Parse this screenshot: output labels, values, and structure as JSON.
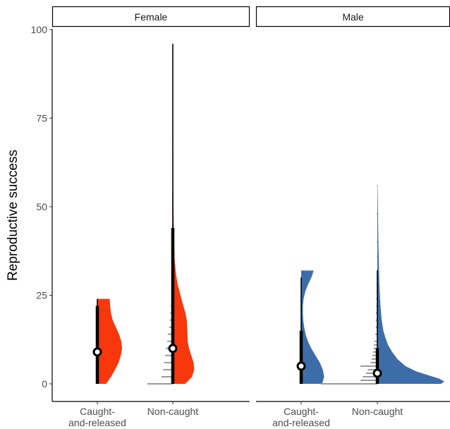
{
  "chart_data": {
    "type": "raincloud",
    "ylabel": "Reproductive success",
    "xlabel": "",
    "ylim": [
      0,
      100
    ],
    "yticks": [
      0,
      25,
      50,
      75,
      100
    ],
    "categories": [
      "Caught-\nand-released",
      "Non-caught"
    ],
    "grid": false,
    "legend": "none",
    "panels": [
      {
        "name": "Female",
        "color": "#F8370C",
        "groups": [
          {
            "category": "Caught-\nand-released",
            "median": 9,
            "interval_66": [
              0,
              22
            ],
            "interval_95": [
              0,
              24
            ],
            "range": [
              0,
              24
            ],
            "density": [
              [
                0,
                0.35
              ],
              [
                2,
                0.55
              ],
              [
                4,
                0.72
              ],
              [
                6,
                0.86
              ],
              [
                8,
                0.95
              ],
              [
                10,
                1.0
              ],
              [
                12,
                0.97
              ],
              [
                14,
                0.88
              ],
              [
                16,
                0.75
              ],
              [
                18,
                0.62
              ],
              [
                20,
                0.55
              ],
              [
                22,
                0.52
              ],
              [
                24,
                0.5
              ]
            ],
            "histogram": []
          },
          {
            "category": "Non-caught",
            "median": 10,
            "interval_66": [
              0,
              44
            ],
            "interval_95": [
              0,
              96
            ],
            "range": [
              0,
              96
            ],
            "density": [
              [
                0,
                0.55
              ],
              [
                2,
                0.85
              ],
              [
                4,
                0.95
              ],
              [
                6,
                0.92
              ],
              [
                8,
                0.82
              ],
              [
                10,
                0.72
              ],
              [
                12,
                0.66
              ],
              [
                15,
                0.64
              ],
              [
                18,
                0.62
              ],
              [
                20,
                0.56
              ],
              [
                22,
                0.47
              ],
              [
                25,
                0.34
              ],
              [
                28,
                0.22
              ],
              [
                31,
                0.14
              ],
              [
                35,
                0.08
              ],
              [
                40,
                0.05
              ],
              [
                45,
                0.04
              ],
              [
                50,
                0.03
              ],
              [
                60,
                0.02
              ],
              [
                70,
                0.015
              ],
              [
                80,
                0.01
              ],
              [
                90,
                0.008
              ],
              [
                96,
                0.005
              ]
            ],
            "histogram": [
              [
                0,
                1.0
              ],
              [
                2,
                0.45
              ],
              [
                4,
                0.38
              ],
              [
                6,
                0.34
              ],
              [
                8,
                0.3
              ],
              [
                10,
                0.28
              ],
              [
                12,
                0.22
              ],
              [
                14,
                0.2
              ],
              [
                16,
                0.15
              ],
              [
                18,
                0.12
              ],
              [
                20,
                0.1
              ],
              [
                22,
                0.08
              ],
              [
                24,
                0.06
              ],
              [
                26,
                0.05
              ],
              [
                28,
                0.04
              ],
              [
                30,
                0.03
              ],
              [
                32,
                0.03
              ],
              [
                34,
                0.02
              ],
              [
                36,
                0.02
              ],
              [
                38,
                0.015
              ],
              [
                40,
                0.015
              ],
              [
                44,
                0.01
              ],
              [
                55,
                0.01
              ],
              [
                75,
                0.01
              ],
              [
                96,
                0.01
              ]
            ]
          }
        ]
      },
      {
        "name": "Male",
        "color": "#3D6DA9",
        "groups": [
          {
            "category": "Caught-\nand-released",
            "median": 5,
            "interval_66": [
              0,
              15
            ],
            "interval_95": [
              0,
              30
            ],
            "range": [
              0,
              32
            ],
            "density": [
              [
                0,
                0.62
              ],
              [
                2,
                0.68
              ],
              [
                4,
                0.64
              ],
              [
                6,
                0.55
              ],
              [
                8,
                0.42
              ],
              [
                10,
                0.3
              ],
              [
                12,
                0.2
              ],
              [
                14,
                0.13
              ],
              [
                16,
                0.09
              ],
              [
                18,
                0.06
              ],
              [
                20,
                0.05
              ],
              [
                22,
                0.05
              ],
              [
                24,
                0.07
              ],
              [
                26,
                0.12
              ],
              [
                28,
                0.2
              ],
              [
                30,
                0.3
              ],
              [
                32,
                0.37
              ]
            ],
            "histogram": []
          },
          {
            "category": "Non-caught",
            "median": 3,
            "interval_66": [
              0,
              10
            ],
            "interval_95": [
              0,
              32
            ],
            "range": [
              0,
              56
            ],
            "density": [
              [
                0,
                0.95
              ],
              [
                0.7,
                1.0
              ],
              [
                1.5,
                0.92
              ],
              [
                2.5,
                0.75
              ],
              [
                3.5,
                0.58
              ],
              [
                5,
                0.42
              ],
              [
                7,
                0.3
              ],
              [
                9,
                0.22
              ],
              [
                11,
                0.16
              ],
              [
                13,
                0.12
              ],
              [
                15,
                0.09
              ],
              [
                18,
                0.065
              ],
              [
                21,
                0.05
              ],
              [
                24,
                0.04
              ],
              [
                28,
                0.03
              ],
              [
                32,
                0.025
              ],
              [
                36,
                0.02
              ],
              [
                40,
                0.015
              ],
              [
                45,
                0.012
              ],
              [
                50,
                0.008
              ],
              [
                56,
                0.004
              ]
            ],
            "histogram": [
              [
                0,
                1.0
              ],
              [
                1,
                0.3
              ],
              [
                2,
                0.26
              ],
              [
                3,
                0.2
              ],
              [
                4,
                0.17
              ],
              [
                5,
                0.3
              ],
              [
                6,
                0.12
              ],
              [
                7,
                0.1
              ],
              [
                8,
                0.09
              ],
              [
                9,
                0.08
              ],
              [
                10,
                0.07
              ],
              [
                11,
                0.06
              ],
              [
                12,
                0.05
              ],
              [
                14,
                0.04
              ],
              [
                16,
                0.03
              ],
              [
                18,
                0.03
              ],
              [
                20,
                0.025
              ],
              [
                22,
                0.02
              ],
              [
                24,
                0.02
              ],
              [
                26,
                0.015
              ],
              [
                28,
                0.015
              ],
              [
                30,
                0.01
              ],
              [
                32,
                0.01
              ],
              [
                36,
                0.01
              ],
              [
                40,
                0.01
              ],
              [
                48,
                0.01
              ],
              [
                56,
                0.01
              ]
            ]
          }
        ]
      }
    ]
  }
}
